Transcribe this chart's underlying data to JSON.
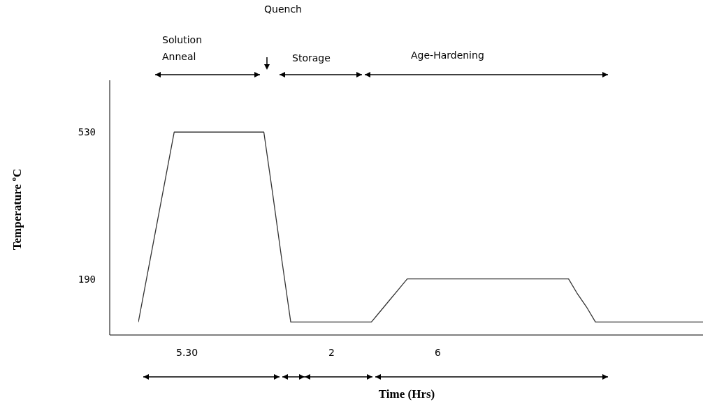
{
  "chart_data": {
    "type": "line",
    "xlabel": "Time (Hrs)",
    "ylabel": "Temperature ºC",
    "categories": [
      null,
      null,
      null,
      null,
      null,
      null,
      null,
      null,
      null,
      null,
      null,
      null,
      null,
      null,
      null,
      null,
      null,
      null,
      null,
      null,
      null,
      null,
      null,
      null,
      null,
      null,
      null,
      null,
      null,
      null,
      null,
      null,
      null,
      null,
      null,
      null,
      null,
      null,
      null,
      null,
      null,
      null,
      null,
      null,
      null,
      null,
      null,
      null,
      null,
      null,
      null,
      null,
      null,
      null,
      null,
      null,
      null,
      null,
      null,
      null,
      null,
      null,
      null,
      null
    ],
    "values": [
      90,
      200,
      310,
      420,
      530,
      530,
      530,
      530,
      530,
      530,
      530,
      530,
      530,
      530,
      530,
      385,
      235,
      90,
      90,
      90,
      90,
      90,
      90,
      90,
      90,
      90,
      90,
      115,
      140,
      165,
      190,
      190,
      190,
      190,
      190,
      190,
      190,
      190,
      190,
      190,
      190,
      190,
      190,
      190,
      190,
      190,
      190,
      190,
      190,
      155,
      125,
      90,
      90,
      90,
      90,
      90,
      90,
      90,
      90,
      90,
      90,
      90,
      90,
      90
    ],
    "color": "#333333",
    "ylim": [
      60,
      650
    ],
    "yticks": [
      190,
      530
    ],
    "tick_labels": "y",
    "grid": false,
    "marker": "none",
    "line_style": "solid",
    "annotations": [
      "Quench",
      "Solution\nAnneal",
      "Storage",
      "Age-Hardening",
      "5.30",
      "2",
      "6"
    ]
  }
}
